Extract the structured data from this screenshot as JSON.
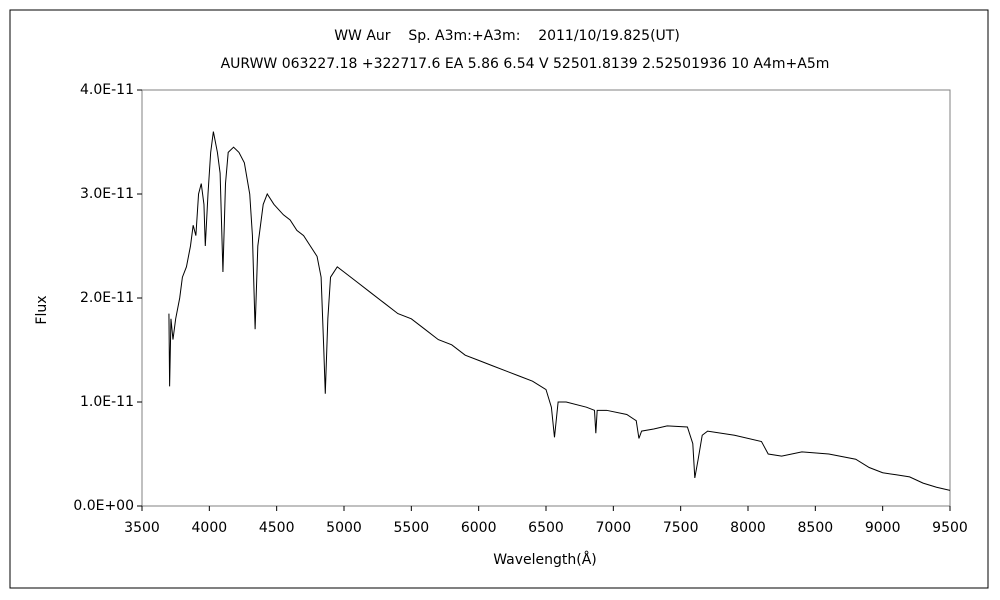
{
  "chart_data": {
    "type": "line",
    "title": "WW Aur    Sp. A3m:+A3m:    2011/10/19.825(UT)",
    "subtitle": "AURWW 063227.18 +322717.6 EA 5.86 6.54 V 52501.8139 2.52501936 10 A4m+A5m",
    "x_label": "Wavelength(Å)",
    "y_label": "Flux",
    "xlim": [
      3500,
      9500
    ],
    "xticks": [
      3500,
      4000,
      4500,
      5000,
      5500,
      6000,
      6500,
      7000,
      7500,
      8000,
      8500,
      9000,
      9500
    ],
    "ylim": [
      0,
      4e-11
    ],
    "yticks": [
      {
        "value": 0,
        "label": "0.0E+00"
      },
      {
        "value": 1e-11,
        "label": "1.0E-11"
      },
      {
        "value": 2e-11,
        "label": "2.0E-11"
      },
      {
        "value": 3e-11,
        "label": "3.0E-11"
      },
      {
        "value": 4e-11,
        "label": "4.0E-11"
      }
    ],
    "grid": false,
    "color": "#000000",
    "x": [
      3700,
      3705,
      3715,
      3730,
      3750,
      3780,
      3800,
      3830,
      3860,
      3880,
      3900,
      3920,
      3940,
      3960,
      3970,
      3990,
      4010,
      4030,
      4060,
      4080,
      4101,
      4120,
      4140,
      4180,
      4220,
      4260,
      4300,
      4320,
      4340,
      4360,
      4400,
      4430,
      4480,
      4550,
      4600,
      4650,
      4700,
      4750,
      4800,
      4830,
      4850,
      4861,
      4880,
      4900,
      4950,
      5000,
      5100,
      5200,
      5300,
      5400,
      5500,
      5600,
      5700,
      5800,
      5900,
      6000,
      6100,
      6200,
      6300,
      6400,
      6500,
      6540,
      6563,
      6590,
      6650,
      6800,
      6860,
      6870,
      6880,
      6950,
      7100,
      7170,
      7190,
      7210,
      7300,
      7400,
      7550,
      7590,
      7605,
      7630,
      7660,
      7700,
      7900,
      8100,
      8150,
      8250,
      8400,
      8600,
      8800,
      8900,
      9000,
      9100,
      9200,
      9300,
      9400,
      9500
    ],
    "values": [
      1.85e-11,
      1.15e-11,
      1.8e-11,
      1.6e-11,
      1.8e-11,
      2e-11,
      2.2e-11,
      2.3e-11,
      2.5e-11,
      2.7e-11,
      2.6e-11,
      3e-11,
      3.1e-11,
      2.9e-11,
      2.5e-11,
      3e-11,
      3.4e-11,
      3.6e-11,
      3.4e-11,
      3.2e-11,
      2.25e-11,
      3.1e-11,
      3.4e-11,
      3.45e-11,
      3.4e-11,
      3.3e-11,
      3e-11,
      2.6e-11,
      1.7e-11,
      2.5e-11,
      2.9e-11,
      3e-11,
      2.9e-11,
      2.8e-11,
      2.75e-11,
      2.65e-11,
      2.6e-11,
      2.5e-11,
      2.4e-11,
      2.2e-11,
      1.5e-11,
      1.08e-11,
      1.8e-11,
      2.2e-11,
      2.3e-11,
      2.25e-11,
      2.15e-11,
      2.05e-11,
      1.95e-11,
      1.85e-11,
      1.8e-11,
      1.7e-11,
      1.6e-11,
      1.55e-11,
      1.45e-11,
      1.4e-11,
      1.35e-11,
      1.3e-11,
      1.25e-11,
      1.2e-11,
      1.12e-11,
      9.5e-12,
      6.6e-12,
      1e-11,
      1e-11,
      9.5e-12,
      9.2e-12,
      7e-12,
      9.2e-12,
      9.2e-12,
      8.8e-12,
      8.2e-12,
      6.5e-12,
      7.2e-12,
      7.4e-12,
      7.7e-12,
      7.6e-12,
      6e-12,
      2.7e-12,
      4.5e-12,
      6.8e-12,
      7.2e-12,
      6.8e-12,
      6.2e-12,
      5e-12,
      4.8e-12,
      5.2e-12,
      5e-12,
      4.5e-12,
      3.7e-12,
      3.2e-12,
      3e-12,
      2.8e-12,
      2.2e-12,
      1.8e-12,
      1.5e-12
    ]
  }
}
